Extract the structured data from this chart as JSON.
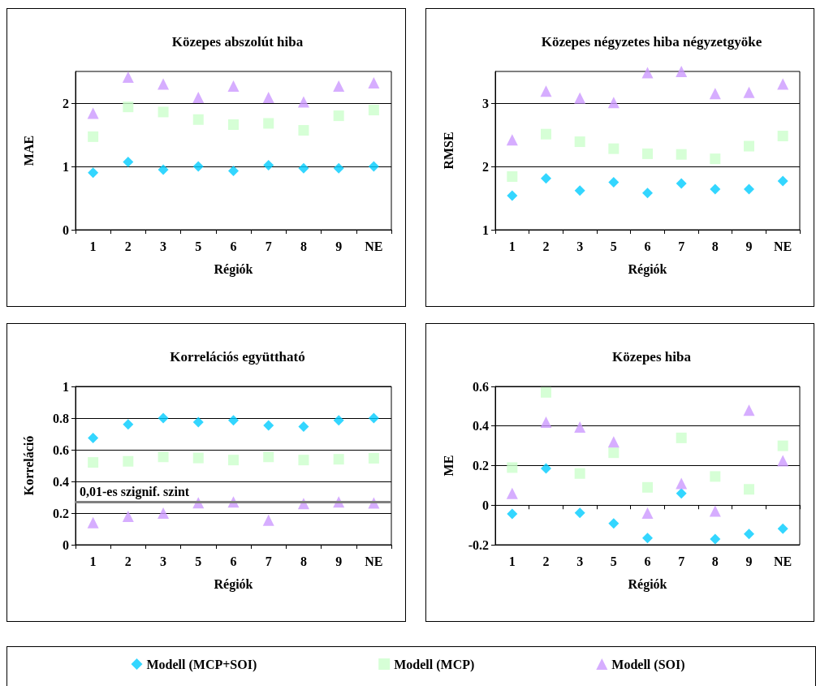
{
  "chart_data": [
    {
      "type": "scatter",
      "title": "Közepes abszolút hiba",
      "xlabel": "Régiók",
      "ylabel": "MAE",
      "categories": [
        "1",
        "2",
        "3",
        "5",
        "6",
        "7",
        "8",
        "9",
        "NE"
      ],
      "ylim": [
        0,
        2.5
      ],
      "yticks": [
        0,
        1,
        2
      ],
      "grid": "y",
      "series": [
        {
          "color": "#00ccff",
          "marker": "diamond",
          "values": [
            0.9,
            1.07,
            0.95,
            1.0,
            0.93,
            1.02,
            0.97,
            0.97,
            1.0
          ]
        },
        {
          "color": "#ccffcc",
          "marker": "square",
          "values": [
            1.47,
            1.94,
            1.86,
            1.74,
            1.66,
            1.68,
            1.57,
            1.8,
            1.89
          ]
        },
        {
          "color": "#cc99ff",
          "marker": "triangle",
          "values": [
            1.84,
            2.41,
            2.3,
            2.09,
            2.27,
            2.09,
            2.02,
            2.27,
            2.32
          ]
        }
      ]
    },
    {
      "type": "scatter",
      "title": "Közepes négyzetes hiba négyzetgyöke",
      "xlabel": "Régiók",
      "ylabel": "RMSE",
      "categories": [
        "1",
        "2",
        "3",
        "5",
        "6",
        "7",
        "8",
        "9",
        "NE"
      ],
      "ylim": [
        1,
        3.5
      ],
      "yticks": [
        1,
        2,
        3
      ],
      "grid": "y",
      "series": [
        {
          "color": "#00ccff",
          "marker": "diamond",
          "values": [
            1.54,
            1.81,
            1.62,
            1.75,
            1.58,
            1.73,
            1.64,
            1.64,
            1.77
          ]
        },
        {
          "color": "#ccffcc",
          "marker": "square",
          "values": [
            1.84,
            2.51,
            2.39,
            2.28,
            2.2,
            2.19,
            2.12,
            2.32,
            2.48
          ]
        },
        {
          "color": "#cc99ff",
          "marker": "triangle",
          "values": [
            2.42,
            3.19,
            3.08,
            3.01,
            3.48,
            3.5,
            3.15,
            3.17,
            3.3
          ]
        }
      ]
    },
    {
      "type": "scatter",
      "title": "Korrelációs együttható",
      "xlabel": "Régiók",
      "ylabel": "Korreláció",
      "categories": [
        "1",
        "2",
        "3",
        "5",
        "6",
        "7",
        "8",
        "9",
        "NE"
      ],
      "ylim": [
        0,
        1
      ],
      "yticks": [
        0,
        0.2,
        0.4,
        0.6,
        0.8,
        1
      ],
      "grid": "y",
      "ref_lines": [
        {
          "axis": "y",
          "value": 0.27,
          "label": "0,01-es szignif. szint",
          "color": "#808080"
        }
      ],
      "series": [
        {
          "color": "#00ccff",
          "marker": "diamond",
          "values": [
            0.674,
            0.76,
            0.8,
            0.775,
            0.786,
            0.754,
            0.746,
            0.786,
            0.8
          ]
        },
        {
          "color": "#ccffcc",
          "marker": "square",
          "values": [
            0.52,
            0.527,
            0.555,
            0.548,
            0.535,
            0.555,
            0.535,
            0.54,
            0.546
          ]
        },
        {
          "color": "#cc99ff",
          "marker": "triangle",
          "values": [
            0.14,
            0.18,
            0.2,
            0.265,
            0.27,
            0.155,
            0.26,
            0.27,
            0.264
          ]
        }
      ]
    },
    {
      "type": "scatter",
      "title": "Közepes hiba",
      "xlabel": "Régiók",
      "ylabel": "ME",
      "categories": [
        "1",
        "2",
        "3",
        "5",
        "6",
        "7",
        "8",
        "9",
        "NE"
      ],
      "ylim": [
        -0.2,
        0.6
      ],
      "yticks": [
        -0.2,
        0,
        0.2,
        0.4,
        0.6
      ],
      "grid": "y",
      "legend": "bottom",
      "series": [
        {
          "name": "Modell (MCP+SOI)",
          "color": "#00ccff",
          "marker": "diamond",
          "values": [
            -0.044,
            0.186,
            -0.039,
            -0.092,
            -0.166,
            0.059,
            -0.171,
            -0.146,
            -0.119
          ]
        },
        {
          "name": "Modell (MCP)",
          "color": "#ccffcc",
          "marker": "square",
          "values": [
            0.19,
            0.57,
            0.16,
            0.265,
            0.09,
            0.34,
            0.145,
            0.08,
            0.3
          ]
        },
        {
          "name": "Modell (SOI)",
          "color": "#cc99ff",
          "marker": "triangle",
          "values": [
            0.06,
            0.42,
            0.395,
            0.32,
            -0.04,
            0.11,
            -0.03,
            0.48,
            0.225
          ]
        }
      ]
    }
  ]
}
